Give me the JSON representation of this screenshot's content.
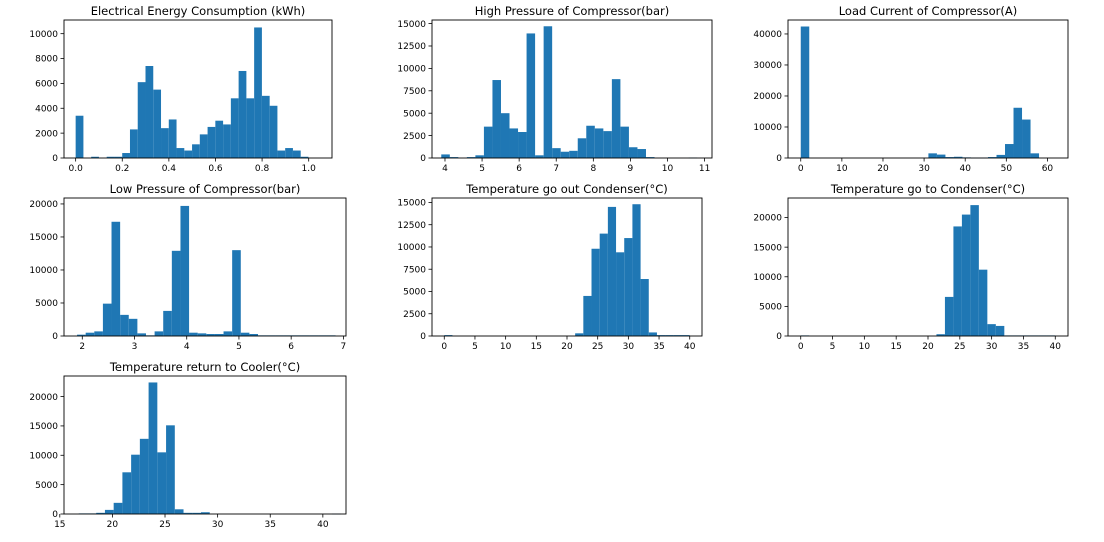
{
  "chart_data": [
    {
      "type": "bar",
      "subtype": "histogram",
      "title": "Electrical Energy Consumption (kWh)",
      "xlabel": "",
      "ylabel": "",
      "xlim": [
        -0.05,
        1.1
      ],
      "ylim": [
        0,
        11100
      ],
      "xticks": [
        0.0,
        0.2,
        0.4,
        0.6,
        0.8,
        1.0
      ],
      "xtick_labels": [
        "0.0",
        "0.2",
        "0.4",
        "0.6",
        "0.8",
        "1.0"
      ],
      "yticks": [
        0,
        2000,
        4000,
        6000,
        8000,
        10000
      ],
      "ytick_labels": [
        "0",
        "2000",
        "4000",
        "6000",
        "8000",
        "10000"
      ],
      "bin_start": 0.0,
      "bin_width": 0.0333,
      "counts": [
        3400,
        0,
        100,
        0,
        100,
        100,
        400,
        2300,
        6100,
        7400,
        5500,
        2400,
        3100,
        800,
        600,
        1100,
        1900,
        2500,
        3000,
        2700,
        4800,
        7000,
        4800,
        10500,
        5000,
        4200,
        600,
        800,
        600,
        100
      ],
      "color": "#1f77b4"
    },
    {
      "type": "bar",
      "subtype": "histogram",
      "title": "High Pressure of Compressor(bar)",
      "xlabel": "",
      "ylabel": "",
      "xlim": [
        3.65,
        11.2
      ],
      "ylim": [
        0,
        15400
      ],
      "xticks": [
        4,
        5,
        6,
        7,
        8,
        9,
        10,
        11
      ],
      "xtick_labels": [
        "4",
        "5",
        "6",
        "7",
        "8",
        "9",
        "10",
        "11"
      ],
      "yticks": [
        0,
        2500,
        5000,
        7500,
        10000,
        12500,
        15000
      ],
      "ytick_labels": [
        "0",
        "2500",
        "5000",
        "7500",
        "10000",
        "12500",
        "15000"
      ],
      "bin_start": 3.9,
      "bin_width": 0.23,
      "counts": [
        400,
        100,
        0,
        100,
        300,
        3500,
        8700,
        5000,
        3300,
        2900,
        13900,
        300,
        14700,
        1100,
        700,
        800,
        2200,
        3600,
        3300,
        3000,
        8800,
        3500,
        1200,
        1000,
        100,
        0,
        0,
        0,
        0,
        50
      ],
      "color": "#1f77b4"
    },
    {
      "type": "bar",
      "subtype": "histogram",
      "title": "Load Current of Compressor(A)",
      "xlabel": "",
      "ylabel": "",
      "xlim": [
        -3.1,
        65
      ],
      "ylim": [
        0,
        44500
      ],
      "xticks": [
        0,
        10,
        20,
        30,
        40,
        50,
        60
      ],
      "xtick_labels": [
        "0",
        "10",
        "20",
        "30",
        "40",
        "50",
        "60"
      ],
      "yticks": [
        0,
        10000,
        20000,
        30000,
        40000
      ],
      "ytick_labels": [
        "0",
        "10000",
        "20000",
        "30000",
        "40000"
      ],
      "bin_start": 0.0,
      "bin_width": 2.07,
      "counts": [
        42400,
        0,
        0,
        0,
        0,
        0,
        0,
        0,
        0,
        0,
        0,
        0,
        0,
        0,
        0,
        1500,
        1100,
        300,
        400,
        200,
        100,
        100,
        300,
        1000,
        4500,
        16200,
        12400,
        1500,
        0,
        0
      ],
      "color": "#1f77b4"
    },
    {
      "type": "bar",
      "subtype": "histogram",
      "title": "Low Pressure of Compressor(bar)",
      "xlabel": "",
      "ylabel": "",
      "xlim": [
        1.65,
        7.05
      ],
      "ylim": [
        0,
        20900
      ],
      "xticks": [
        2,
        3,
        4,
        5,
        6,
        7
      ],
      "xtick_labels": [
        "2",
        "3",
        "4",
        "5",
        "6",
        "7"
      ],
      "yticks": [
        0,
        5000,
        10000,
        15000,
        20000
      ],
      "ytick_labels": [
        "0",
        "5000",
        "10000",
        "15000",
        "20000"
      ],
      "bin_start": 1.9,
      "bin_width": 0.165,
      "counts": [
        200,
        500,
        700,
        4900,
        17300,
        3200,
        2600,
        400,
        100,
        700,
        3800,
        12900,
        19700,
        500,
        400,
        300,
        300,
        700,
        13000,
        500,
        300,
        100,
        100,
        100,
        100,
        100,
        100,
        100,
        100,
        100
      ],
      "color": "#1f77b4"
    },
    {
      "type": "bar",
      "subtype": "histogram",
      "title": "Temperature go out Condenser(°C)",
      "xlabel": "",
      "ylabel": "",
      "xlim": [
        -2.0,
        42.0
      ],
      "ylim": [
        0,
        15500
      ],
      "xticks": [
        0,
        5,
        10,
        15,
        20,
        25,
        30,
        35,
        40
      ],
      "xtick_labels": [
        "0",
        "5",
        "10",
        "15",
        "20",
        "25",
        "30",
        "35",
        "40"
      ],
      "yticks": [
        0,
        2500,
        5000,
        7500,
        10000,
        12500,
        15000
      ],
      "ytick_labels": [
        "0",
        "2500",
        "5000",
        "7500",
        "10000",
        "12500",
        "15000"
      ],
      "bin_start": 0.0,
      "bin_width": 1.333,
      "counts": [
        100,
        0,
        0,
        0,
        0,
        0,
        0,
        0,
        0,
        0,
        0,
        0,
        0,
        0,
        0,
        0,
        300,
        4500,
        9800,
        11500,
        14500,
        9400,
        11000,
        14800,
        6400,
        400,
        100,
        100,
        100,
        100
      ],
      "color": "#1f77b4"
    },
    {
      "type": "bar",
      "subtype": "histogram",
      "title": "Temperature go to Condenser(°C)",
      "xlabel": "",
      "ylabel": "",
      "xlim": [
        -2.0,
        42.0
      ],
      "ylim": [
        0,
        23300
      ],
      "xticks": [
        0,
        5,
        10,
        15,
        20,
        25,
        30,
        35,
        40
      ],
      "xtick_labels": [
        "0",
        "5",
        "10",
        "15",
        "20",
        "25",
        "30",
        "35",
        "40"
      ],
      "yticks": [
        0,
        5000,
        10000,
        15000,
        20000
      ],
      "ytick_labels": [
        "0",
        "5000",
        "10000",
        "15000",
        "20000"
      ],
      "bin_start": 0.0,
      "bin_width": 1.333,
      "counts": [
        100,
        0,
        0,
        0,
        0,
        0,
        0,
        0,
        0,
        0,
        0,
        0,
        0,
        0,
        0,
        0,
        300,
        6600,
        18500,
        20500,
        22100,
        11200,
        2000,
        1700,
        100,
        100,
        100,
        100,
        100,
        100
      ],
      "color": "#1f77b4"
    },
    {
      "type": "bar",
      "subtype": "histogram",
      "title": "Temperature return to Cooler(°C)",
      "xlabel": "",
      "ylabel": "",
      "xlim": [
        15.4,
        42.2
      ],
      "ylim": [
        0,
        23500
      ],
      "xticks": [
        15,
        20,
        25,
        30,
        35,
        40
      ],
      "xtick_labels": [
        "15",
        "20",
        "25",
        "30",
        "35",
        "40"
      ],
      "yticks": [
        0,
        5000,
        10000,
        15000,
        20000
      ],
      "ytick_labels": [
        "0",
        "5000",
        "10000",
        "15000",
        "20000"
      ],
      "bin_start": 16.8,
      "bin_width": 0.83,
      "counts": [
        100,
        100,
        200,
        700,
        1900,
        7100,
        10100,
        12800,
        22400,
        10500,
        15100,
        800,
        200,
        200,
        300,
        0,
        0,
        0,
        0,
        0,
        0,
        0,
        0,
        0,
        0,
        0,
        0,
        0,
        0,
        50
      ],
      "color": "#1f77b4"
    }
  ]
}
